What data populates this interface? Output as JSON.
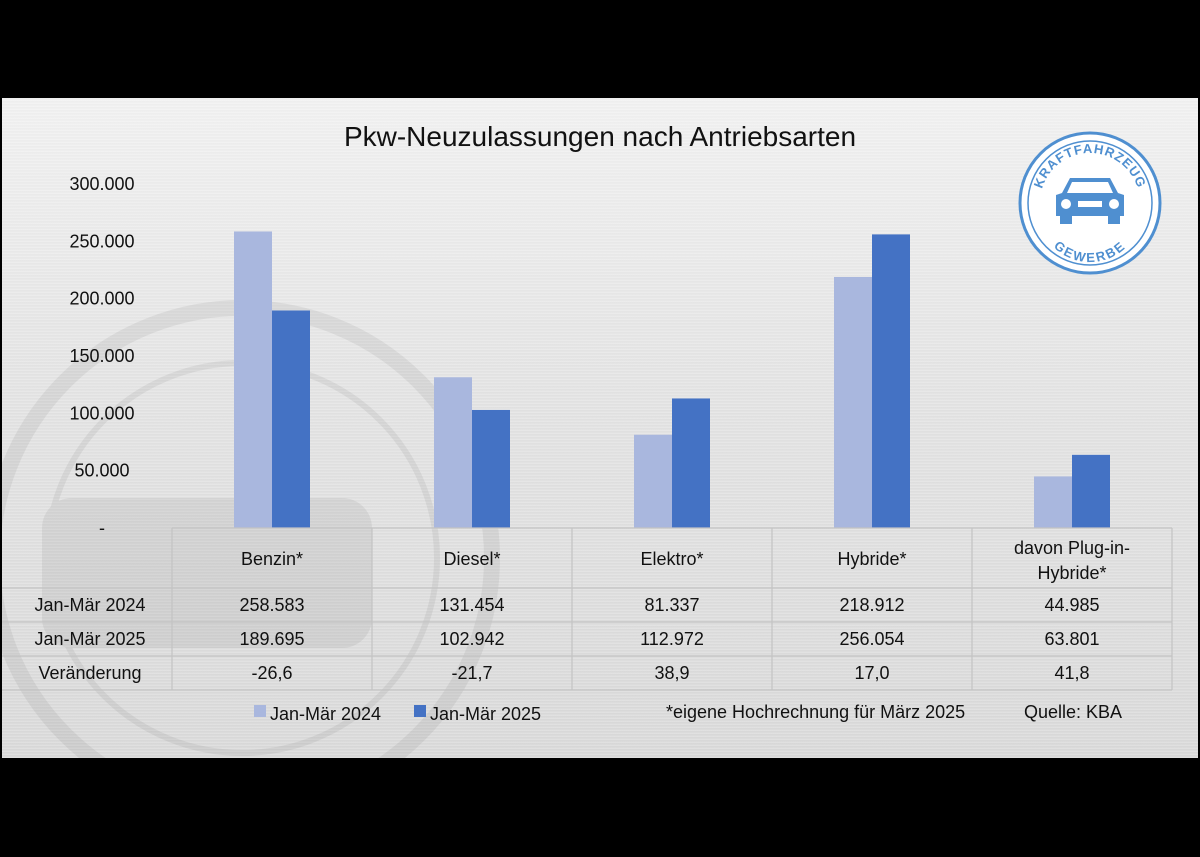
{
  "logo": {
    "top_text": "KRAFTFAHRZEUG",
    "bottom_text": "GEWERBE",
    "color": "#4f8fd0"
  },
  "chart_data": {
    "type": "bar",
    "title": "Pkw-Neuzulassungen nach Antriebsarten",
    "categories": [
      "Benzin*",
      "Diesel*",
      "Elektro*",
      "Hybride*",
      "davon Plug-in-Hybride*"
    ],
    "category_lines": [
      [
        "Benzin*"
      ],
      [
        "Diesel*"
      ],
      [
        "Elektro*"
      ],
      [
        "Hybride*"
      ],
      [
        "davon Plug-in-",
        "Hybride*"
      ]
    ],
    "series": [
      {
        "name": "Jan-Mär 2024",
        "values": [
          258583,
          131454,
          81337,
          218912,
          44985
        ],
        "color": "#a9b7de"
      },
      {
        "name": "Jan-Mär 2025",
        "values": [
          189695,
          102942,
          112972,
          256054,
          63801
        ],
        "color": "#4472c4"
      }
    ],
    "ylim": [
      0,
      300000
    ],
    "yticks": [
      "300.000",
      "250.000",
      "200.000",
      "150.000",
      "100.000",
      "50.000",
      "-"
    ],
    "grid": false,
    "legend": "bottom-left",
    "table": {
      "rows": [
        {
          "label": "Jan-Mär 2024",
          "cells": [
            "258.583",
            "131.454",
            "81.337",
            "218.912",
            "44.985"
          ]
        },
        {
          "label": "Jan-Mär 2025",
          "cells": [
            "189.695",
            "102.942",
            "112.972",
            "256.054",
            "63.801"
          ]
        },
        {
          "label": "Veränderung",
          "cells": [
            "-26,6",
            "-21,7",
            "38,9",
            "17,0",
            "41,8"
          ]
        }
      ]
    },
    "footnote": "*eigene Hochrechnung für März 2025",
    "source": "Quelle: KBA"
  }
}
